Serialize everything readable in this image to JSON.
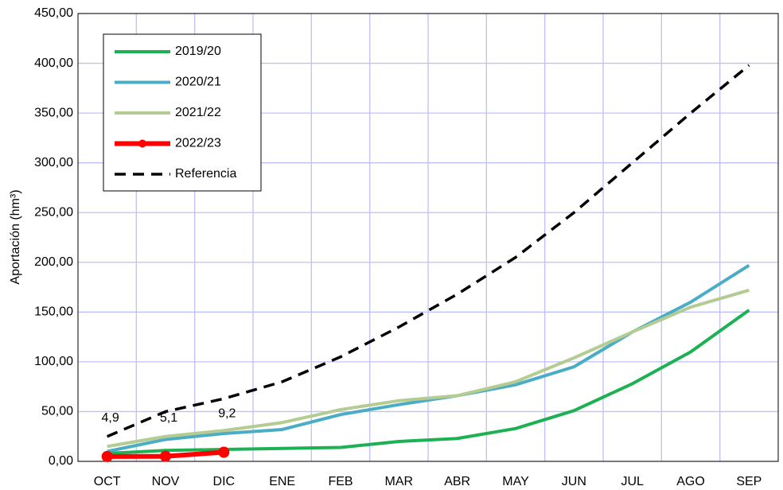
{
  "chart_data": {
    "type": "line",
    "y_label": "Aportación (hm³)",
    "categories": [
      "OCT",
      "NOV",
      "DIC",
      "ENE",
      "FEB",
      "MAR",
      "ABR",
      "MAY",
      "JUN",
      "JUL",
      "AGO",
      "SEP"
    ],
    "series": [
      {
        "name": "2019/20",
        "color": "#1db154",
        "values": [
          8,
          11,
          12,
          13,
          14,
          20,
          23,
          33,
          51,
          78,
          110,
          152
        ]
      },
      {
        "name": "2020/21",
        "color": "#4bacc6",
        "values": [
          10,
          22,
          28,
          32,
          47,
          57,
          66,
          77,
          95,
          130,
          160,
          197
        ]
      },
      {
        "name": "2021/22",
        "color": "#b4cc92",
        "values": [
          15,
          25,
          31,
          39,
          52,
          61,
          66,
          80,
          104,
          130,
          155,
          172
        ]
      },
      {
        "name": "2022/23",
        "color": "#ff0000",
        "marker": "circle",
        "values": [
          4.9,
          5.1,
          9.2,
          null,
          null,
          null,
          null,
          null,
          null,
          null,
          null,
          null
        ],
        "value_labels": [
          "4,9",
          "5,1",
          "9,2",
          null,
          null,
          null,
          null,
          null,
          null,
          null,
          null,
          null
        ]
      },
      {
        "name": "Referencia",
        "color": "#000000",
        "dash": true,
        "values": [
          25,
          50,
          63,
          80,
          105,
          135,
          168,
          205,
          250,
          300,
          350,
          398
        ]
      }
    ],
    "ylim": [
      0,
      450
    ],
    "yticks": [
      {
        "value": 0,
        "label": "0,00"
      },
      {
        "value": 50,
        "label": "50,00"
      },
      {
        "value": 100,
        "label": "100,00"
      },
      {
        "value": 150,
        "label": "150,00"
      },
      {
        "value": 200,
        "label": "200,00"
      },
      {
        "value": 250,
        "label": "250,00"
      },
      {
        "value": 300,
        "label": "300,00"
      },
      {
        "value": 350,
        "label": "350,00"
      },
      {
        "value": 400,
        "label": "400,00"
      },
      {
        "value": 450,
        "label": "450,00"
      }
    ],
    "grid": true,
    "legend_position": "upper left"
  }
}
